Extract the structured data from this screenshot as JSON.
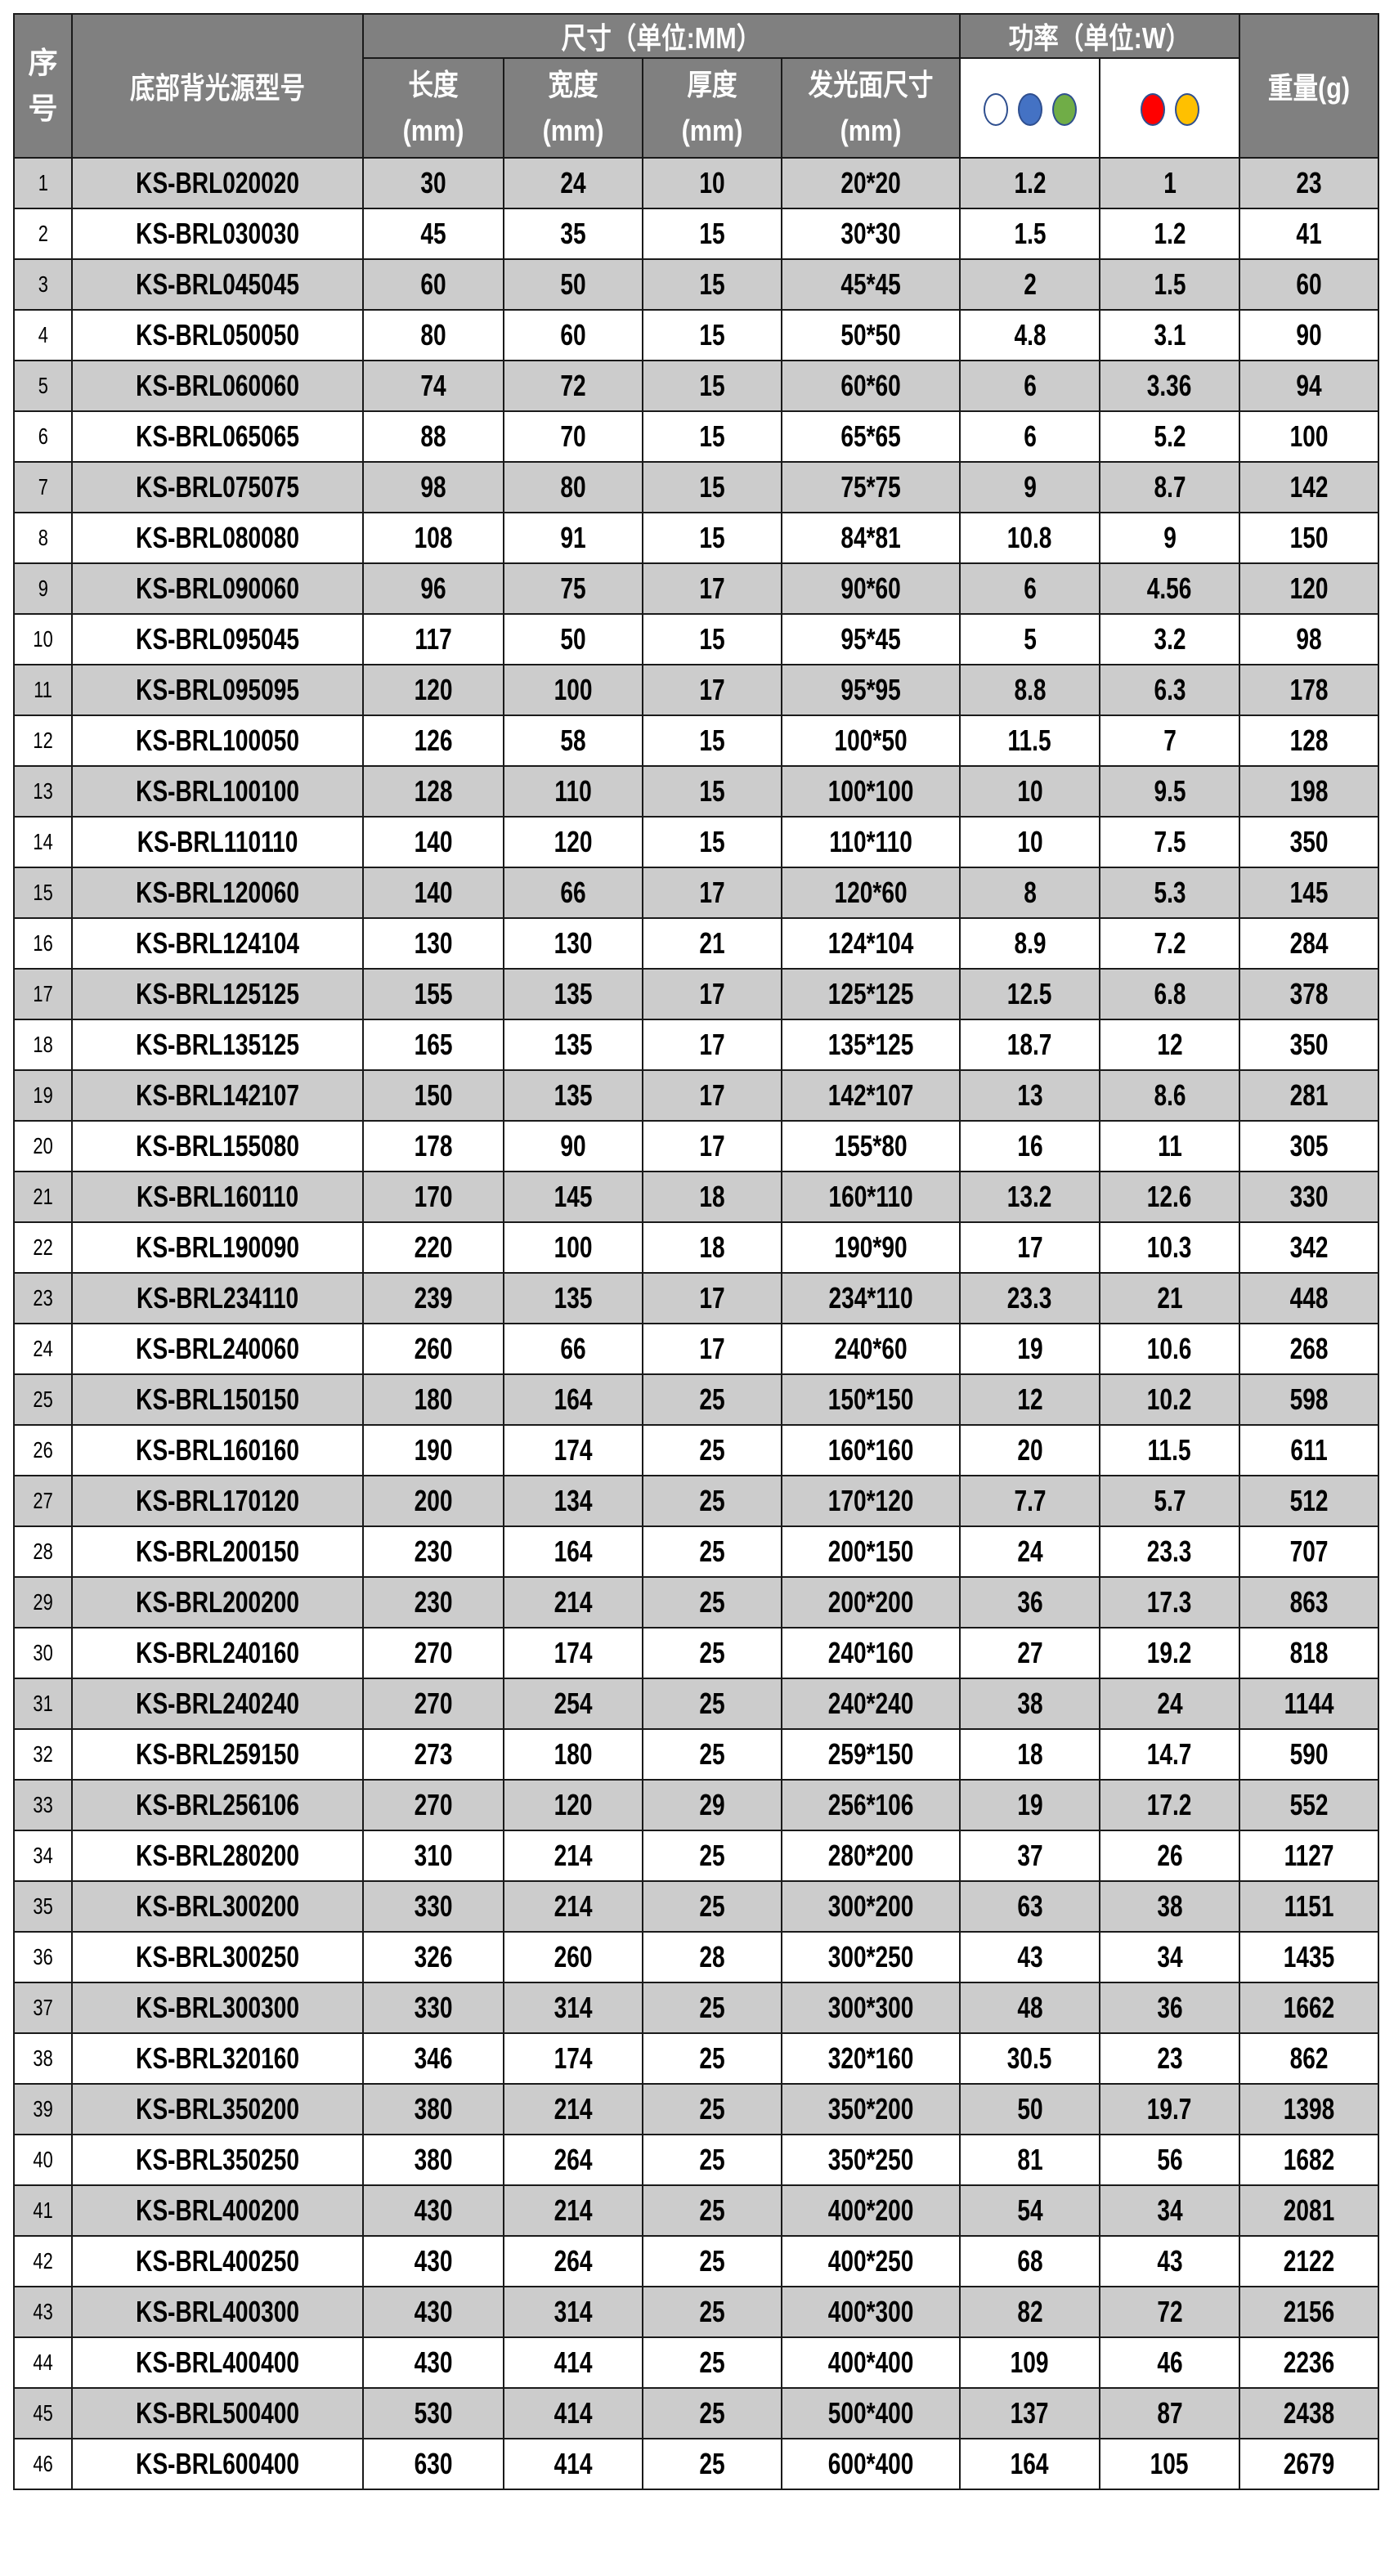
{
  "header": {
    "index": "序号",
    "model": "底部背光源型号",
    "size_group": "尺寸（单位:MM）",
    "power_group": "功率（单位:W）",
    "length": "长度",
    "width": "宽度",
    "thickness": "厚度",
    "emitting": "发光面尺寸",
    "unit": "(mm)",
    "weight": "重量(g)",
    "power_col1_colors": [
      "#ffffff",
      "#4472c4",
      "#70ad47"
    ],
    "power_col2_colors": [
      "#ff0000",
      "#ffc000"
    ]
  },
  "colors": {
    "header_bg": "#808080",
    "stripe": "#cccccc"
  },
  "rows": [
    [
      "1",
      "KS-BRL020020",
      "30",
      "24",
      "10",
      "20*20",
      "1.2",
      "1",
      "23"
    ],
    [
      "2",
      "KS-BRL030030",
      "45",
      "35",
      "15",
      "30*30",
      "1.5",
      "1.2",
      "41"
    ],
    [
      "3",
      "KS-BRL045045",
      "60",
      "50",
      "15",
      "45*45",
      "2",
      "1.5",
      "60"
    ],
    [
      "4",
      "KS-BRL050050",
      "80",
      "60",
      "15",
      "50*50",
      "4.8",
      "3.1",
      "90"
    ],
    [
      "5",
      "KS-BRL060060",
      "74",
      "72",
      "15",
      "60*60",
      "6",
      "3.36",
      "94"
    ],
    [
      "6",
      "KS-BRL065065",
      "88",
      "70",
      "15",
      "65*65",
      "6",
      "5.2",
      "100"
    ],
    [
      "7",
      "KS-BRL075075",
      "98",
      "80",
      "15",
      "75*75",
      "9",
      "8.7",
      "142"
    ],
    [
      "8",
      "KS-BRL080080",
      "108",
      "91",
      "15",
      "84*81",
      "10.8",
      "9",
      "150"
    ],
    [
      "9",
      "KS-BRL090060",
      "96",
      "75",
      "17",
      "90*60",
      "6",
      "4.56",
      "120"
    ],
    [
      "10",
      "KS-BRL095045",
      "117",
      "50",
      "15",
      "95*45",
      "5",
      "3.2",
      "98"
    ],
    [
      "11",
      "KS-BRL095095",
      "120",
      "100",
      "17",
      "95*95",
      "8.8",
      "6.3",
      "178"
    ],
    [
      "12",
      "KS-BRL100050",
      "126",
      "58",
      "15",
      "100*50",
      "11.5",
      "7",
      "128"
    ],
    [
      "13",
      "KS-BRL100100",
      "128",
      "110",
      "15",
      "100*100",
      "10",
      "9.5",
      "198"
    ],
    [
      "14",
      "KS-BRL110110",
      "140",
      "120",
      "15",
      "110*110",
      "10",
      "7.5",
      "350"
    ],
    [
      "15",
      "KS-BRL120060",
      "140",
      "66",
      "17",
      "120*60",
      "8",
      "5.3",
      "145"
    ],
    [
      "16",
      "KS-BRL124104",
      "130",
      "130",
      "21",
      "124*104",
      "8.9",
      "7.2",
      "284"
    ],
    [
      "17",
      "KS-BRL125125",
      "155",
      "135",
      "17",
      "125*125",
      "12.5",
      "6.8",
      "378"
    ],
    [
      "18",
      "KS-BRL135125",
      "165",
      "135",
      "17",
      "135*125",
      "18.7",
      "12",
      "350"
    ],
    [
      "19",
      "KS-BRL142107",
      "150",
      "135",
      "17",
      "142*107",
      "13",
      "8.6",
      "281"
    ],
    [
      "20",
      "KS-BRL155080",
      "178",
      "90",
      "17",
      "155*80",
      "16",
      "11",
      "305"
    ],
    [
      "21",
      "KS-BRL160110",
      "170",
      "145",
      "18",
      "160*110",
      "13.2",
      "12.6",
      "330"
    ],
    [
      "22",
      "KS-BRL190090",
      "220",
      "100",
      "18",
      "190*90",
      "17",
      "10.3",
      "342"
    ],
    [
      "23",
      "KS-BRL234110",
      "239",
      "135",
      "17",
      "234*110",
      "23.3",
      "21",
      "448"
    ],
    [
      "24",
      "KS-BRL240060",
      "260",
      "66",
      "17",
      "240*60",
      "19",
      "10.6",
      "268"
    ],
    [
      "25",
      "KS-BRL150150",
      "180",
      "164",
      "25",
      "150*150",
      "12",
      "10.2",
      "598"
    ],
    [
      "26",
      "KS-BRL160160",
      "190",
      "174",
      "25",
      "160*160",
      "20",
      "11.5",
      "611"
    ],
    [
      "27",
      "KS-BRL170120",
      "200",
      "134",
      "25",
      "170*120",
      "7.7",
      "5.7",
      "512"
    ],
    [
      "28",
      "KS-BRL200150",
      "230",
      "164",
      "25",
      "200*150",
      "24",
      "23.3",
      "707"
    ],
    [
      "29",
      "KS-BRL200200",
      "230",
      "214",
      "25",
      "200*200",
      "36",
      "17.3",
      "863"
    ],
    [
      "30",
      "KS-BRL240160",
      "270",
      "174",
      "25",
      "240*160",
      "27",
      "19.2",
      "818"
    ],
    [
      "31",
      "KS-BRL240240",
      "270",
      "254",
      "25",
      "240*240",
      "38",
      "24",
      "1144"
    ],
    [
      "32",
      "KS-BRL259150",
      "273",
      "180",
      "25",
      "259*150",
      "18",
      "14.7",
      "590"
    ],
    [
      "33",
      "KS-BRL256106",
      "270",
      "120",
      "29",
      "256*106",
      "19",
      "17.2",
      "552"
    ],
    [
      "34",
      "KS-BRL280200",
      "310",
      "214",
      "25",
      "280*200",
      "37",
      "26",
      "1127"
    ],
    [
      "35",
      "KS-BRL300200",
      "330",
      "214",
      "25",
      "300*200",
      "63",
      "38",
      "1151"
    ],
    [
      "36",
      "KS-BRL300250",
      "326",
      "260",
      "28",
      "300*250",
      "43",
      "34",
      "1435"
    ],
    [
      "37",
      "KS-BRL300300",
      "330",
      "314",
      "25",
      "300*300",
      "48",
      "36",
      "1662"
    ],
    [
      "38",
      "KS-BRL320160",
      "346",
      "174",
      "25",
      "320*160",
      "30.5",
      "23",
      "862"
    ],
    [
      "39",
      "KS-BRL350200",
      "380",
      "214",
      "25",
      "350*200",
      "50",
      "19.7",
      "1398"
    ],
    [
      "40",
      "KS-BRL350250",
      "380",
      "264",
      "25",
      "350*250",
      "81",
      "56",
      "1682"
    ],
    [
      "41",
      "KS-BRL400200",
      "430",
      "214",
      "25",
      "400*200",
      "54",
      "34",
      "2081"
    ],
    [
      "42",
      "KS-BRL400250",
      "430",
      "264",
      "25",
      "400*250",
      "68",
      "43",
      "2122"
    ],
    [
      "43",
      "KS-BRL400300",
      "430",
      "314",
      "25",
      "400*300",
      "82",
      "72",
      "2156"
    ],
    [
      "44",
      "KS-BRL400400",
      "430",
      "414",
      "25",
      "400*400",
      "109",
      "46",
      "2236"
    ],
    [
      "45",
      "KS-BRL500400",
      "530",
      "414",
      "25",
      "500*400",
      "137",
      "87",
      "2438"
    ],
    [
      "46",
      "KS-BRL600400",
      "630",
      "414",
      "25",
      "600*400",
      "164",
      "105",
      "2679"
    ]
  ]
}
